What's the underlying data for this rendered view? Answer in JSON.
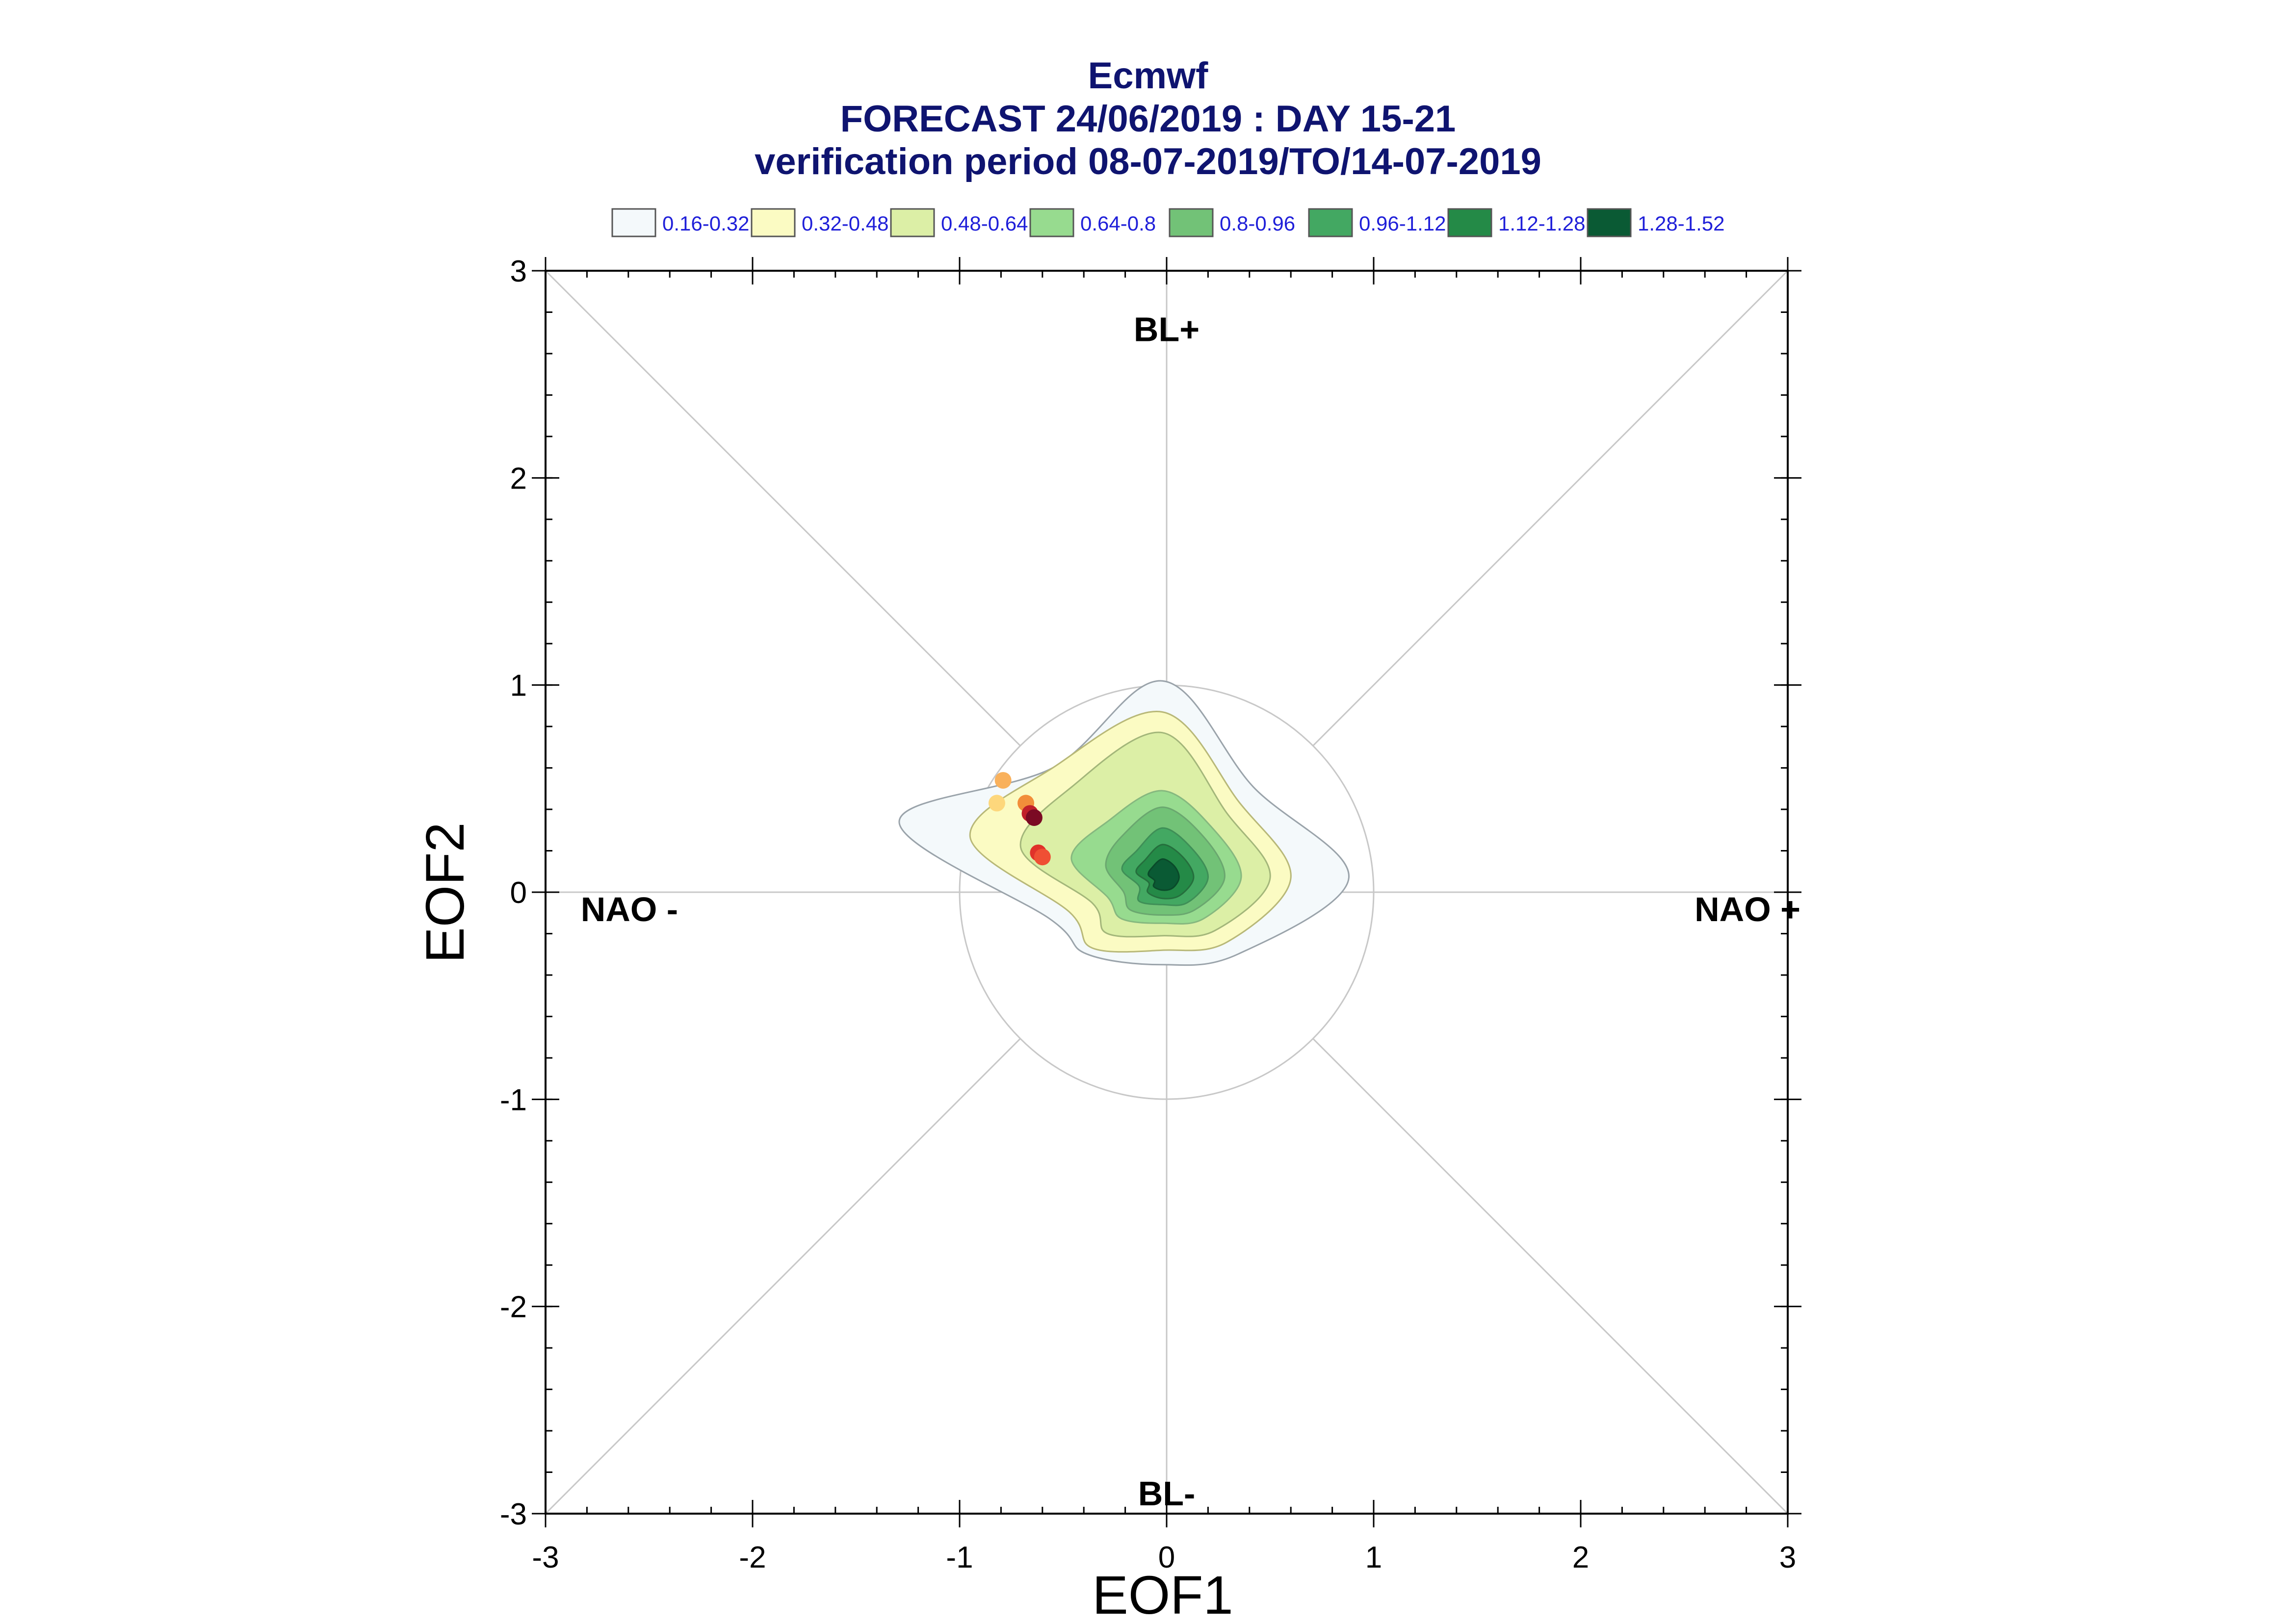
{
  "chart_data": {
    "type": "contour",
    "title": "Ecmwf",
    "subtitle": "FORECAST 24/06/2019 : DAY 15-21",
    "subtitle2": "verification period 08-07-2019/TO/14-07-2019",
    "xlabel": "EOF1",
    "ylabel": "EOF2",
    "xlim": [
      -3,
      3
    ],
    "ylim": [
      -3,
      3
    ],
    "xticks": [
      "-3",
      "-2",
      "-1",
      "0",
      "1",
      "2",
      "3"
    ],
    "yticks": [
      "-3",
      "-2",
      "-1",
      "0",
      "1",
      "2",
      "3"
    ],
    "unit_circle_radius": 1,
    "regime_labels": [
      {
        "text": "BL+",
        "x": 0,
        "y": 2.72
      },
      {
        "text": "BL-",
        "x": 0,
        "y": -2.9
      },
      {
        "text": "NAO -",
        "x": -2.83,
        "y": -0.08
      },
      {
        "text": "NAO +",
        "x": 2.55,
        "y": -0.08
      }
    ],
    "legend": [
      {
        "label": "0.16-0.32",
        "color": "#f4f9fb"
      },
      {
        "label": "0.32-0.48",
        "color": "#fbfbc3"
      },
      {
        "label": "0.48-0.64",
        "color": "#dcefa6"
      },
      {
        "label": "0.64-0.8",
        "color": "#97db8f"
      },
      {
        "label": "0.8-0.96",
        "color": "#72c277"
      },
      {
        "label": "0.96-1.12",
        "color": "#43a862"
      },
      {
        "label": "1.12-1.28",
        "color": "#248a47"
      },
      {
        "label": "1.28-1.52",
        "color": "#0a5a34"
      }
    ],
    "density_center": {
      "x": -0.02,
      "y": 0.07
    },
    "points": [
      {
        "x": -0.79,
        "y": 0.54,
        "color": "#f9b15c"
      },
      {
        "x": -0.82,
        "y": 0.43,
        "color": "#fdd77c"
      },
      {
        "x": -0.68,
        "y": 0.43,
        "color": "#f28e3a"
      },
      {
        "x": -0.66,
        "y": 0.38,
        "color": "#c01f2a"
      },
      {
        "x": -0.64,
        "y": 0.36,
        "color": "#7b0a24"
      },
      {
        "x": -0.62,
        "y": 0.19,
        "color": "#e0322a"
      },
      {
        "x": -0.6,
        "y": 0.17,
        "color": "#ef4f34"
      }
    ]
  }
}
